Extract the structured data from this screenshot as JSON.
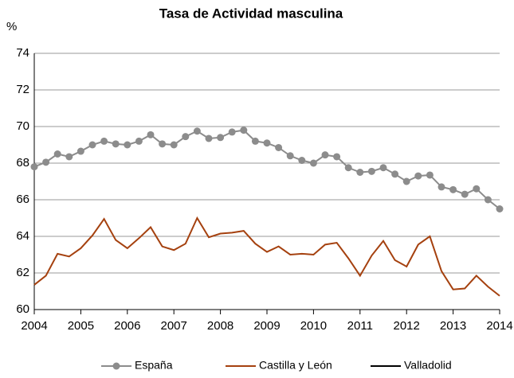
{
  "chart_data": {
    "type": "line",
    "title": "Tasa de Actividad masculina",
    "y_label": "%",
    "x": [
      2004,
      2004.25,
      2004.5,
      2004.75,
      2005,
      2005.25,
      2005.5,
      2005.75,
      2006,
      2006.25,
      2006.5,
      2006.75,
      2007,
      2007.25,
      2007.5,
      2007.75,
      2008,
      2008.25,
      2008.5,
      2008.75,
      2009,
      2009.25,
      2009.5,
      2009.75,
      2010,
      2010.25,
      2010.5,
      2010.75,
      2011,
      2011.25,
      2011.5,
      2011.75,
      2012,
      2012.25,
      2012.5,
      2012.75,
      2013,
      2013.25,
      2013.5,
      2013.75,
      2014
    ],
    "series": [
      {
        "name": "España",
        "color": "#8c8c8c",
        "marker": true,
        "values": [
          67.8,
          68.05,
          68.5,
          68.35,
          68.65,
          69.0,
          69.2,
          69.05,
          69.0,
          69.2,
          69.55,
          69.05,
          69.0,
          69.45,
          69.75,
          69.35,
          69.4,
          69.7,
          69.8,
          69.2,
          69.1,
          68.85,
          68.4,
          68.15,
          68.0,
          68.45,
          68.35,
          67.75,
          67.5,
          67.55,
          67.75,
          67.4,
          67.0,
          67.3,
          67.35,
          66.7,
          66.55,
          66.3,
          66.6,
          66.0,
          65.5
        ]
      },
      {
        "name": "Castilla y León",
        "color": "#a5410f",
        "marker": false,
        "values": [
          61.35,
          61.85,
          63.05,
          62.9,
          63.35,
          64.05,
          64.95,
          63.8,
          63.35,
          63.9,
          64.5,
          63.45,
          63.25,
          63.6,
          65.0,
          63.95,
          64.15,
          64.2,
          64.3,
          63.6,
          63.15,
          63.45,
          63.0,
          63.05,
          63.0,
          63.55,
          63.65,
          62.8,
          61.85,
          62.95,
          63.75,
          62.7,
          62.35,
          63.55,
          64.0,
          62.1,
          61.1,
          61.15,
          61.85,
          61.25,
          60.75
        ]
      },
      {
        "name": "Valladolid",
        "color": "#000000",
        "marker": false,
        "values": [
          null,
          null,
          null,
          null,
          null,
          null,
          null,
          null,
          null,
          null,
          null,
          null,
          null,
          null,
          null,
          null,
          null,
          null,
          null,
          null,
          null,
          null,
          null,
          null,
          null,
          null,
          null,
          null,
          null,
          null,
          null,
          null,
          null,
          null,
          null,
          null,
          null,
          null,
          null,
          null,
          null
        ]
      }
    ],
    "xlim": [
      2004,
      2014
    ],
    "xticks": [
      2004,
      2005,
      2006,
      2007,
      2008,
      2009,
      2010,
      2011,
      2012,
      2013,
      2014
    ],
    "ylim": [
      60,
      74
    ],
    "yticks": [
      60,
      62,
      64,
      66,
      68,
      70,
      72,
      74
    ],
    "grid": true
  }
}
